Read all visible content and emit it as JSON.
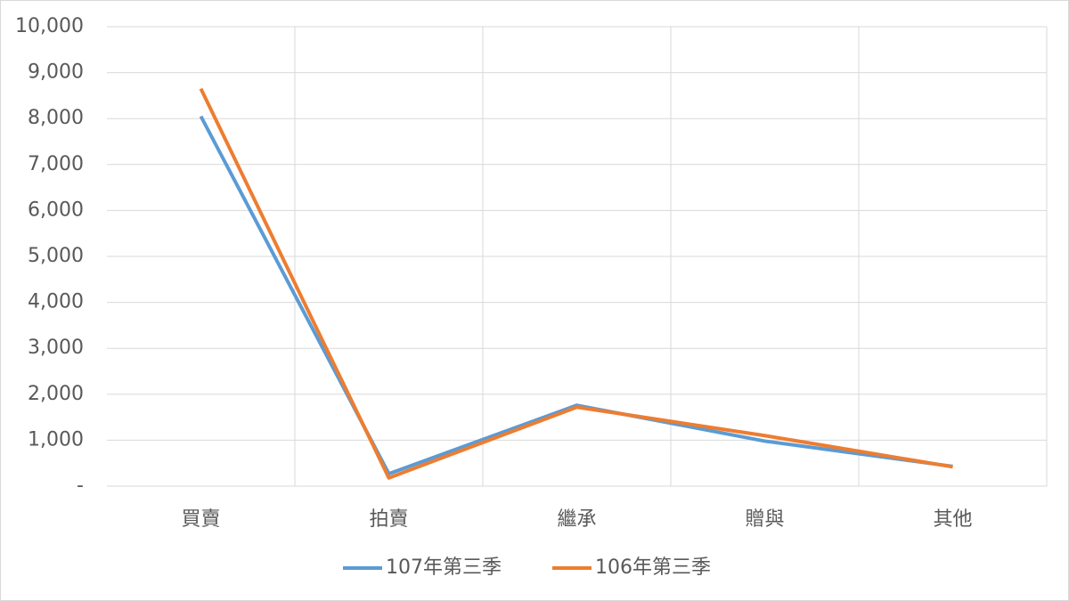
{
  "chart_data": {
    "type": "line",
    "categories": [
      "買賣",
      "拍賣",
      "繼承",
      "贈與",
      "其他"
    ],
    "series": [
      {
        "name": "107年第三季",
        "color": "#5b9bd5",
        "values": [
          8050,
          270,
          1760,
          980,
          430
        ]
      },
      {
        "name": "106年第三季",
        "color": "#ed7d31",
        "values": [
          8650,
          180,
          1720,
          1100,
          420
        ]
      }
    ],
    "ylim": [
      0,
      10000
    ],
    "yticks": [
      {
        "value": 0,
        "label": "-"
      },
      {
        "value": 1000,
        "label": "1,000"
      },
      {
        "value": 2000,
        "label": "2,000"
      },
      {
        "value": 3000,
        "label": "3,000"
      },
      {
        "value": 4000,
        "label": "4,000"
      },
      {
        "value": 5000,
        "label": "5,000"
      },
      {
        "value": 6000,
        "label": "6,000"
      },
      {
        "value": 7000,
        "label": "7,000"
      },
      {
        "value": 8000,
        "label": "8,000"
      },
      {
        "value": 9000,
        "label": "9,000"
      },
      {
        "value": 10000,
        "label": "10,000"
      }
    ],
    "grid": true,
    "legend": "bottom"
  }
}
